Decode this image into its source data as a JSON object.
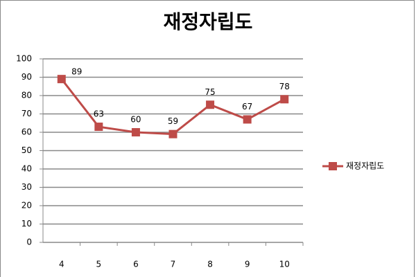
{
  "chart_data": {
    "type": "line",
    "title": "재정자립도",
    "categories": [
      "4",
      "5",
      "6",
      "7",
      "8",
      "9",
      "10"
    ],
    "series": [
      {
        "name": "재정자립도",
        "color": "#be4b48",
        "values": [
          89,
          63,
          60,
          59,
          75,
          67,
          78
        ]
      }
    ],
    "ylim": [
      0,
      100
    ],
    "yticks": [
      0,
      10,
      20,
      30,
      40,
      50,
      60,
      70,
      80,
      90,
      100
    ],
    "grid": true,
    "legend": "right",
    "data_labels": true
  }
}
